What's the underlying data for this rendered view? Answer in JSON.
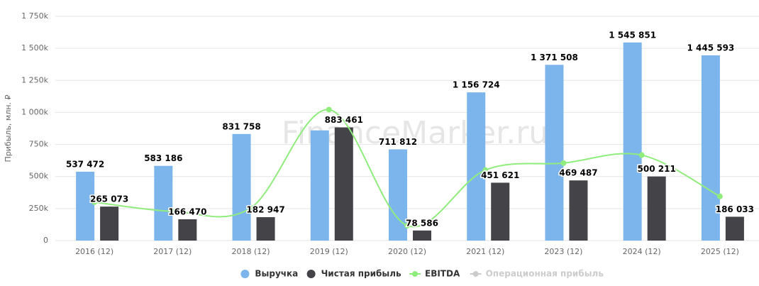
{
  "chart_data": {
    "type": "bar",
    "watermark": "FinanceMarker.ru",
    "y_axis_label": "Прибыль, млн. ₽",
    "categories": [
      "2016 (12)",
      "2017 (12)",
      "2018 (12)",
      "2019 (12)",
      "2020 (12)",
      "2021 (12)",
      "2023 (12)",
      "2024 (12)",
      "2025 (12)"
    ],
    "series": [
      {
        "name": "Выручка",
        "type": "bar",
        "color": "#7cb5ec",
        "values": [
          537472,
          583186,
          831758,
          860000,
          711812,
          1156724,
          1371508,
          1545851,
          1445593
        ],
        "value_labels": [
          "537 472",
          "583 186",
          "831 758",
          null,
          "711 812",
          "1 156 724",
          "1 371 508",
          "1 545 851",
          "1 445 593"
        ]
      },
      {
        "name": "Чистая прибыль",
        "type": "bar",
        "color": "#434348",
        "values": [
          265073,
          166470,
          182947,
          883461,
          78586,
          451621,
          469487,
          500211,
          186033
        ],
        "value_labels": [
          "265 073",
          "166 470",
          "182 947",
          "883 461",
          "78 586",
          "451 621",
          "469 487",
          "500 211",
          "186 033"
        ]
      },
      {
        "name": "EBITDA",
        "type": "line",
        "color": "#90ed7d",
        "values": [
          300000,
          228000,
          255000,
          1022000,
          117000,
          550000,
          605000,
          667000,
          345000
        ]
      },
      {
        "name": "Операционная прибыль",
        "type": "line",
        "color": "#cccccc",
        "visible": false
      }
    ],
    "ylim": [
      0,
      1750000
    ],
    "yticks": [
      0,
      {
        "value": 250000,
        "label": "250k"
      },
      {
        "value": 500000,
        "label": "500k"
      },
      {
        "value": 750000,
        "label": "750k"
      },
      {
        "value": 1000000,
        "label": "1 000k"
      },
      {
        "value": 1250000,
        "label": "1 250k"
      },
      {
        "value": 1500000,
        "label": "1 500k"
      },
      {
        "value": 1750000,
        "label": "1 750k"
      }
    ],
    "grid": true,
    "legend": "bottom"
  }
}
